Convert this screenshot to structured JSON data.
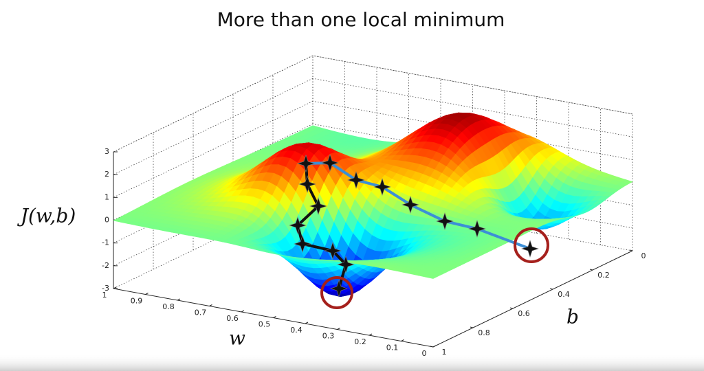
{
  "chart_data": {
    "type": "surface",
    "title": "More than one local minimum",
    "zlabel": "J(w,b)",
    "xlabel": "w",
    "ylabel": "b",
    "xlim": [
      0,
      1
    ],
    "xticks": [
      1,
      0.9,
      0.8,
      0.7,
      0.6,
      0.5,
      0.4,
      0.3,
      0.2,
      0.1,
      0
    ],
    "ylim": [
      0,
      1
    ],
    "yticks": [
      0,
      0.2,
      0.4,
      0.6,
      0.8,
      1
    ],
    "zlim": [
      -3,
      3
    ],
    "zticks": [
      3,
      2,
      1,
      0,
      -1,
      -2,
      -3
    ],
    "grid": true
  }
}
